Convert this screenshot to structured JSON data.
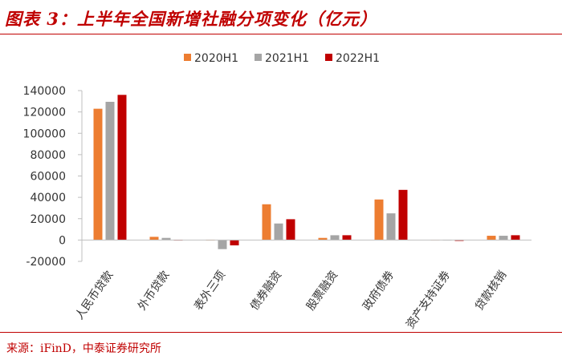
{
  "header": {
    "title": "图表 3：上半年全国新增社融分项变化（亿元）"
  },
  "footer": {
    "source": "来源：iFinD，中泰证券研究所"
  },
  "chart_data": {
    "type": "bar",
    "categories": [
      "人民币贷款",
      "外币贷款",
      "表外三项",
      "债券融资",
      "股票融资",
      "政府债券",
      "资产支持证券",
      "贷款核销"
    ],
    "series": [
      {
        "name": "2020H1",
        "color": "#ed7d31",
        "values": [
          123000,
          3000,
          0,
          33500,
          2000,
          38000,
          200,
          4000
        ]
      },
      {
        "name": "2021H1",
        "color": "#a5a5a5",
        "values": [
          129500,
          2000,
          -8500,
          15500,
          4500,
          25000,
          -300,
          4000
        ]
      },
      {
        "name": "2022H1",
        "color": "#c00000",
        "values": [
          136000,
          -500,
          -5000,
          19500,
          4500,
          47000,
          -800,
          4500
        ]
      }
    ],
    "yticks": [
      -20000,
      0,
      20000,
      40000,
      60000,
      80000,
      100000,
      120000,
      140000
    ],
    "ylim": [
      -20000,
      140000
    ],
    "grid": false,
    "legend": "top"
  }
}
